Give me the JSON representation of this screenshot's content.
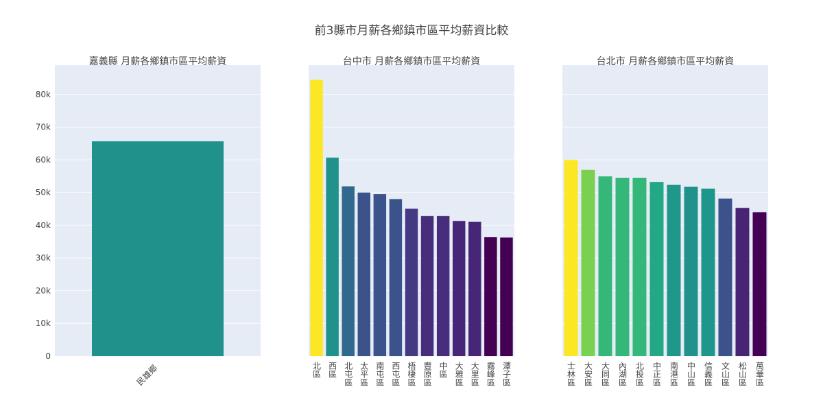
{
  "title": "前3縣市月薪各鄉鎮市區平均薪資比較",
  "y_ticks": [
    "0",
    "10k",
    "20k",
    "30k",
    "40k",
    "50k",
    "60k",
    "70k",
    "80k"
  ],
  "chart_data": [
    {
      "type": "bar",
      "title": "嘉義縣 月薪各鄉鎮市區平均薪資",
      "categories": [
        "民雄鄉"
      ],
      "values": [
        65700
      ],
      "colors": [
        "#21918c"
      ],
      "ylim": [
        0,
        89000
      ],
      "grid": true
    },
    {
      "type": "bar",
      "title": "台中市 月薪各鄉鎮市區平均薪資",
      "categories": [
        "北區",
        "西區",
        "北屯區",
        "太平區",
        "南屯區",
        "西屯區",
        "梧棲區",
        "豐原區",
        "中區",
        "大雅區",
        "大里區",
        "霧峰區",
        "潭子區"
      ],
      "values": [
        84500,
        60700,
        51900,
        50000,
        49600,
        48000,
        45100,
        42900,
        42900,
        41300,
        41100,
        36400,
        36300
      ],
      "colors": [
        "#fde725",
        "#21918c",
        "#31688e",
        "#3b528b",
        "#3b528b",
        "#3b528b",
        "#443983",
        "#472d7b",
        "#472d7b",
        "#482677",
        "#482677",
        "#440154",
        "#440154"
      ],
      "ylim": [
        0,
        89000
      ],
      "grid": true
    },
    {
      "type": "bar",
      "title": "台北市 月薪各鄉鎮市區平均薪資",
      "categories": [
        "士林區",
        "大安區",
        "大同區",
        "內湖區",
        "北投區",
        "中正區",
        "南港區",
        "中山區",
        "信義區",
        "文山區",
        "松山區",
        "萬華區"
      ],
      "values": [
        60000,
        57000,
        55000,
        54500,
        54500,
        53200,
        52400,
        51800,
        51200,
        48200,
        45300,
        44000
      ],
      "colors": [
        "#fde725",
        "#7ad151",
        "#35b779",
        "#35b779",
        "#35b779",
        "#22a884",
        "#1f988b",
        "#21918c",
        "#1f968b",
        "#3b528b",
        "#482475",
        "#440154"
      ],
      "ylim": [
        0,
        89000
      ],
      "grid": true
    }
  ]
}
